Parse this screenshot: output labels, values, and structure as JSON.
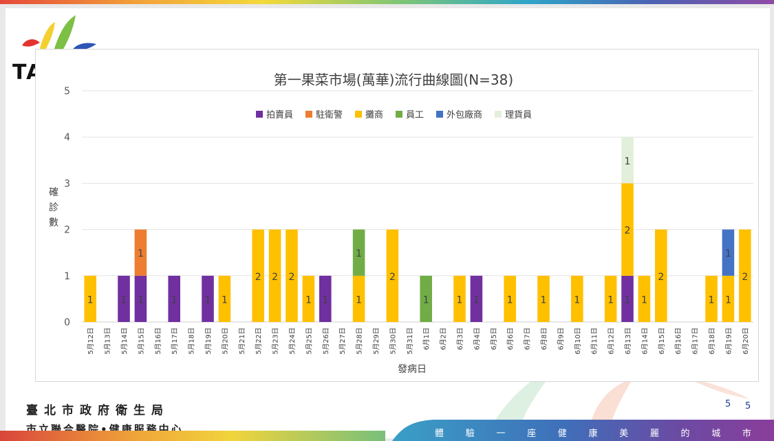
{
  "logo": {
    "text": "TA"
  },
  "chart_data": {
    "type": "bar",
    "stacked": true,
    "title": "第一果菜市場(萬華)流行曲線圖(N=38)",
    "xlabel": "發病日",
    "ylabel": "確診數",
    "ylim": [
      0,
      5
    ],
    "yticks": [
      0,
      1,
      2,
      3,
      4,
      5
    ],
    "grid": true,
    "legend_position": "top",
    "categories": [
      "5月12日",
      "5月13日",
      "5月14日",
      "5月15日",
      "5月16日",
      "5月17日",
      "5月18日",
      "5月19日",
      "5月20日",
      "5月21日",
      "5月22日",
      "5月23日",
      "5月24日",
      "5月25日",
      "5月26日",
      "5月27日",
      "5月28日",
      "5月29日",
      "5月30日",
      "5月31日",
      "6月1日",
      "6月2日",
      "6月3日",
      "6月4日",
      "6月5日",
      "6月6日",
      "6月7日",
      "6月8日",
      "6月9日",
      "6月10日",
      "6月11日",
      "6月12日",
      "6月13日",
      "6月14日",
      "6月15日",
      "6月16日",
      "6月17日",
      "6月18日",
      "6月19日",
      "6月20日"
    ],
    "series": [
      {
        "name": "拍賣員",
        "color": "#7030a0",
        "values": [
          0,
          0,
          1,
          1,
          0,
          1,
          0,
          1,
          0,
          0,
          0,
          0,
          0,
          0,
          1,
          0,
          0,
          0,
          0,
          0,
          0,
          0,
          0,
          1,
          0,
          0,
          0,
          0,
          0,
          0,
          0,
          0,
          1,
          0,
          0,
          0,
          0,
          0,
          0,
          0
        ]
      },
      {
        "name": "駐衛警",
        "color": "#ed7d31",
        "values": [
          0,
          0,
          0,
          1,
          0,
          0,
          0,
          0,
          0,
          0,
          0,
          0,
          0,
          0,
          0,
          0,
          0,
          0,
          0,
          0,
          0,
          0,
          0,
          0,
          0,
          0,
          0,
          0,
          0,
          0,
          0,
          0,
          0,
          0,
          0,
          0,
          0,
          0,
          0,
          0
        ]
      },
      {
        "name": "攤商",
        "color": "#ffc000",
        "values": [
          1,
          0,
          0,
          0,
          0,
          0,
          0,
          0,
          1,
          0,
          2,
          2,
          2,
          1,
          0,
          0,
          1,
          0,
          2,
          0,
          0,
          0,
          1,
          0,
          0,
          1,
          0,
          1,
          0,
          1,
          0,
          1,
          2,
          1,
          2,
          0,
          0,
          1,
          1,
          2
        ]
      },
      {
        "name": "員工",
        "color": "#70ad47",
        "values": [
          0,
          0,
          0,
          0,
          0,
          0,
          0,
          0,
          0,
          0,
          0,
          0,
          0,
          0,
          0,
          0,
          1,
          0,
          0,
          0,
          1,
          0,
          0,
          0,
          0,
          0,
          0,
          0,
          0,
          0,
          0,
          0,
          0,
          0,
          0,
          0,
          0,
          0,
          0,
          0
        ]
      },
      {
        "name": "外包廠商",
        "color": "#4472c4",
        "values": [
          0,
          0,
          0,
          0,
          0,
          0,
          0,
          0,
          0,
          0,
          0,
          0,
          0,
          0,
          0,
          0,
          0,
          0,
          0,
          0,
          0,
          0,
          0,
          0,
          0,
          0,
          0,
          0,
          0,
          0,
          0,
          0,
          0,
          0,
          0,
          0,
          0,
          0,
          1,
          0
        ]
      },
      {
        "name": "理貨員",
        "color": "#e2efda",
        "values": [
          0,
          0,
          0,
          0,
          0,
          0,
          0,
          0,
          0,
          0,
          0,
          0,
          0,
          0,
          0,
          0,
          0,
          0,
          0,
          0,
          0,
          0,
          0,
          0,
          0,
          0,
          0,
          0,
          0,
          0,
          0,
          0,
          1,
          0,
          0,
          0,
          0,
          0,
          0,
          0
        ]
      }
    ]
  },
  "footer": {
    "org_line1": "臺北市政府衛生局",
    "org_line2": "市立聯合醫院•健康服務中心",
    "page_number": "5",
    "page_number_2": "5",
    "slogan": [
      "體",
      "驗",
      "一",
      "座",
      "健",
      "康",
      "美",
      "麗",
      "的",
      "城",
      "市"
    ]
  }
}
